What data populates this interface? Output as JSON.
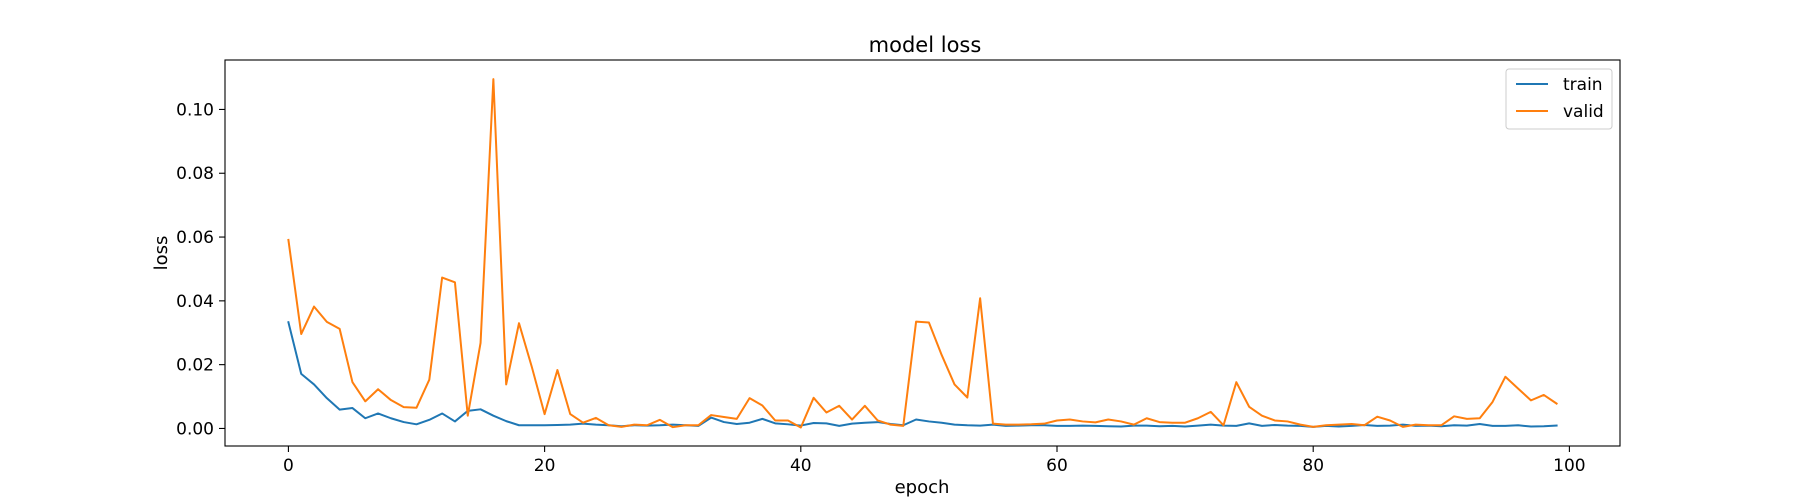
{
  "chart_data": {
    "type": "line",
    "title": "model loss",
    "xlabel": "epoch",
    "ylabel": "loss",
    "xlim": [
      -4.95,
      103.95
    ],
    "ylim": [
      -0.0055,
      0.1155
    ],
    "xticks": [
      0,
      20,
      40,
      60,
      80,
      100
    ],
    "yticks": [
      0.0,
      0.02,
      0.04,
      0.06,
      0.08,
      0.1
    ],
    "xtick_labels": [
      "0",
      "20",
      "40",
      "60",
      "80",
      "100"
    ],
    "ytick_labels": [
      "0.00",
      "0.02",
      "0.04",
      "0.06",
      "0.08",
      "0.10"
    ],
    "grid": false,
    "legend_position": "top-right",
    "series": [
      {
        "name": "train",
        "color": "#1f77b4",
        "x": [
          0,
          1,
          2,
          3,
          4,
          5,
          6,
          7,
          8,
          9,
          10,
          11,
          12,
          13,
          14,
          15,
          16,
          17,
          18,
          19,
          20,
          21,
          22,
          23,
          24,
          25,
          26,
          27,
          28,
          29,
          30,
          31,
          32,
          33,
          34,
          35,
          36,
          37,
          38,
          39,
          40,
          41,
          42,
          43,
          44,
          45,
          46,
          47,
          48,
          49,
          50,
          51,
          52,
          53,
          54,
          55,
          56,
          57,
          58,
          59,
          60,
          61,
          62,
          63,
          64,
          65,
          66,
          67,
          68,
          69,
          70,
          71,
          72,
          73,
          74,
          75,
          76,
          77,
          78,
          79,
          80,
          81,
          82,
          83,
          84,
          85,
          86,
          87,
          88,
          89,
          90,
          91,
          92,
          93,
          94,
          95,
          96,
          97,
          98,
          99
        ],
        "values": [
          0.0333,
          0.0171,
          0.0138,
          0.0095,
          0.0059,
          0.0064,
          0.0032,
          0.0047,
          0.0032,
          0.002,
          0.0013,
          0.0027,
          0.0047,
          0.0022,
          0.0055,
          0.006,
          0.004,
          0.0023,
          0.001,
          0.001,
          0.001,
          0.0011,
          0.0012,
          0.0015,
          0.0012,
          0.001,
          0.0007,
          0.001,
          0.0009,
          0.001,
          0.0012,
          0.001,
          0.0008,
          0.0034,
          0.002,
          0.0014,
          0.0018,
          0.003,
          0.0016,
          0.0013,
          0.0009,
          0.0017,
          0.0016,
          0.0008,
          0.0015,
          0.0018,
          0.002,
          0.0014,
          0.001,
          0.0028,
          0.0022,
          0.0018,
          0.0012,
          0.001,
          0.0009,
          0.0012,
          0.0008,
          0.0009,
          0.001,
          0.001,
          0.0008,
          0.0008,
          0.0009,
          0.0008,
          0.0007,
          0.0006,
          0.0009,
          0.0009,
          0.0007,
          0.0008,
          0.0006,
          0.0009,
          0.0012,
          0.0009,
          0.0008,
          0.0016,
          0.0008,
          0.0011,
          0.0009,
          0.0008,
          0.0005,
          0.0008,
          0.0006,
          0.0008,
          0.0011,
          0.0008,
          0.0009,
          0.0012,
          0.0008,
          0.0009,
          0.0007,
          0.001,
          0.0009,
          0.0014,
          0.0008,
          0.0008,
          0.001,
          0.0006,
          0.0007,
          0.0009
        ]
      },
      {
        "name": "valid",
        "color": "#ff7f0e",
        "x": [
          0,
          1,
          2,
          3,
          4,
          5,
          6,
          7,
          8,
          9,
          10,
          11,
          12,
          13,
          14,
          15,
          16,
          17,
          18,
          19,
          20,
          21,
          22,
          23,
          24,
          25,
          26,
          27,
          28,
          29,
          30,
          31,
          32,
          33,
          34,
          35,
          36,
          37,
          38,
          39,
          40,
          41,
          42,
          43,
          44,
          45,
          46,
          47,
          48,
          49,
          50,
          51,
          52,
          53,
          54,
          55,
          56,
          57,
          58,
          59,
          60,
          61,
          62,
          63,
          64,
          65,
          66,
          67,
          68,
          69,
          70,
          71,
          72,
          73,
          74,
          75,
          76,
          77,
          78,
          79,
          80,
          81,
          82,
          83,
          84,
          85,
          86,
          87,
          88,
          89,
          90,
          91,
          92,
          93,
          94,
          95,
          96,
          97,
          98,
          99
        ],
        "values": [
          0.0591,
          0.0296,
          0.0382,
          0.0334,
          0.0312,
          0.0145,
          0.0085,
          0.0123,
          0.0089,
          0.0067,
          0.0065,
          0.0153,
          0.0473,
          0.0458,
          0.004,
          0.0268,
          0.1095,
          0.0138,
          0.033,
          0.0193,
          0.0045,
          0.0183,
          0.0045,
          0.0018,
          0.0033,
          0.001,
          0.0005,
          0.0012,
          0.001,
          0.0027,
          0.0004,
          0.001,
          0.001,
          0.0042,
          0.0036,
          0.003,
          0.0095,
          0.0072,
          0.0025,
          0.0025,
          0.0003,
          0.0096,
          0.005,
          0.0071,
          0.0028,
          0.0071,
          0.0025,
          0.0012,
          0.0008,
          0.0335,
          0.0332,
          0.023,
          0.0138,
          0.0097,
          0.0408,
          0.0015,
          0.0012,
          0.0012,
          0.0013,
          0.0015,
          0.0025,
          0.0028,
          0.0022,
          0.0019,
          0.0028,
          0.0022,
          0.0012,
          0.0032,
          0.002,
          0.0018,
          0.0018,
          0.0032,
          0.0052,
          0.001,
          0.0145,
          0.0068,
          0.004,
          0.0025,
          0.0022,
          0.0012,
          0.0005,
          0.001,
          0.0012,
          0.0014,
          0.001,
          0.0037,
          0.0025,
          0.0005,
          0.0012,
          0.001,
          0.001,
          0.0038,
          0.003,
          0.0032,
          0.0083,
          0.0162,
          0.0125,
          0.0088,
          0.0105,
          0.0078
        ]
      }
    ]
  }
}
